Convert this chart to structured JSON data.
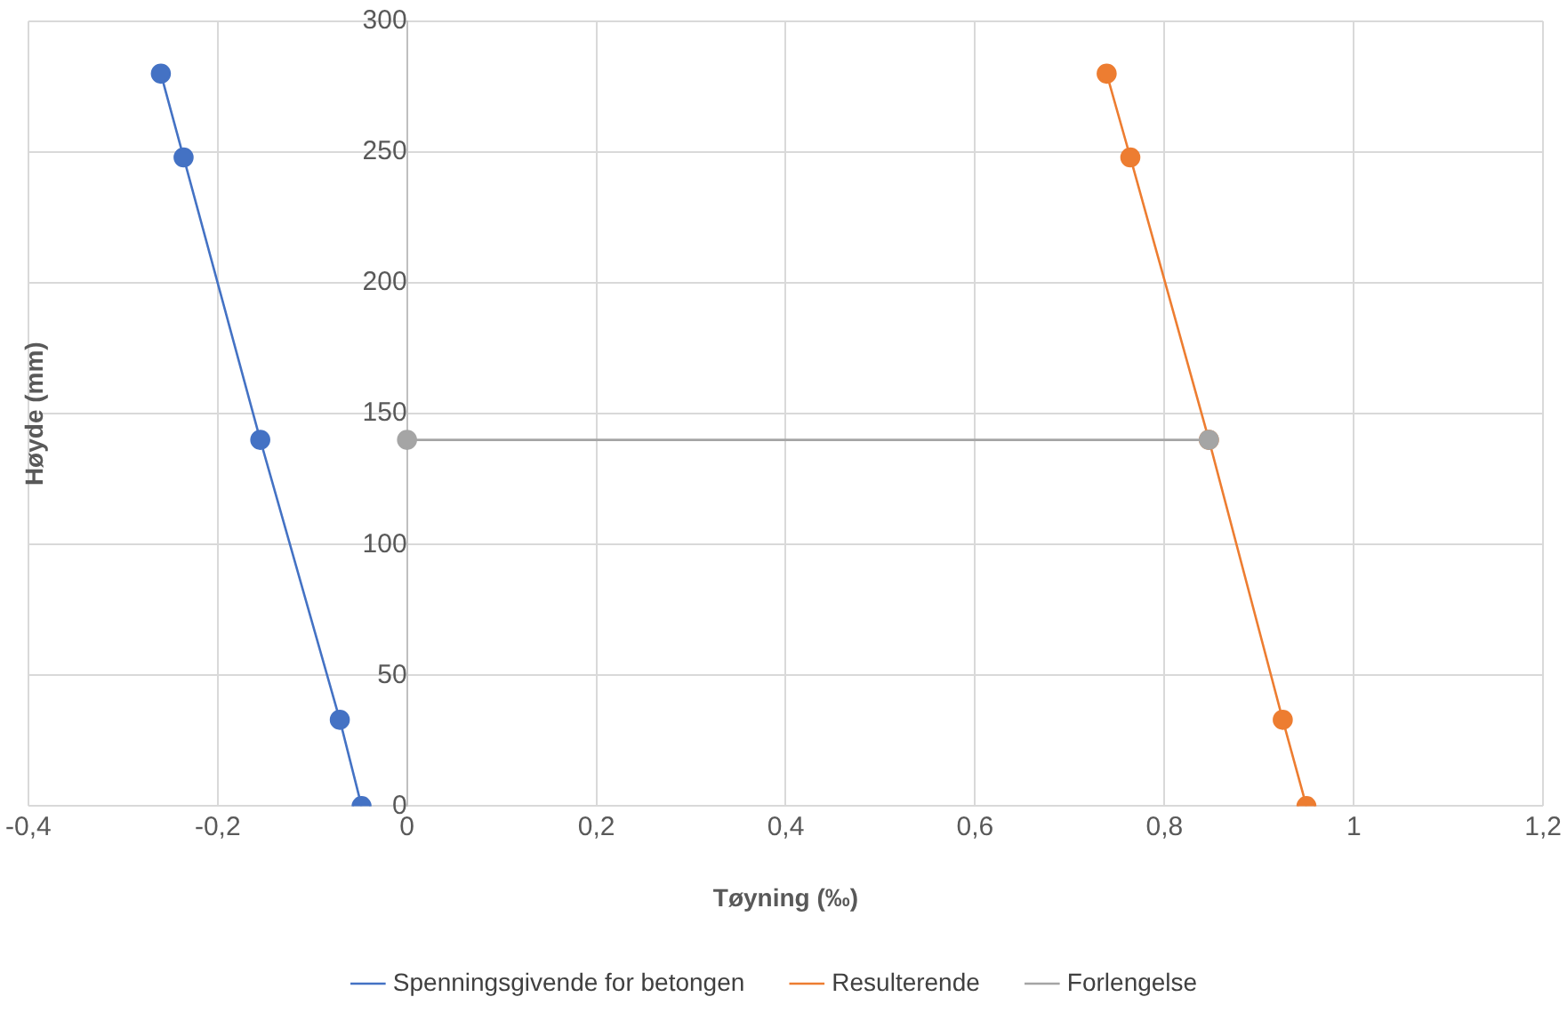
{
  "chart_data": {
    "type": "line",
    "xlabel": "Tøyning (‰)",
    "ylabel": "Høyde (mm)",
    "xlim": [
      -0.4,
      1.2
    ],
    "xticks": [
      {
        "value": -0.4,
        "label": "-0,4"
      },
      {
        "value": -0.2,
        "label": "-0,2"
      },
      0,
      {
        "value": 0.2,
        "label": "0,2"
      },
      {
        "value": 0.4,
        "label": "0,4"
      },
      {
        "value": 0.6,
        "label": "0,6"
      },
      {
        "value": 0.8,
        "label": "0,8"
      },
      1,
      {
        "value": 1.2,
        "label": "1,2"
      }
    ],
    "ylim": [
      0,
      300
    ],
    "yticks": [
      0,
      50,
      100,
      150,
      200,
      250,
      300
    ],
    "grid": true,
    "legend": "bottom",
    "marker": "circle",
    "line_style": "solid",
    "series": [
      {
        "name": "Spenningsgivende for betongen",
        "color": "#4472c4",
        "x": [
          -0.26,
          -0.236,
          -0.155,
          -0.071,
          -0.048
        ],
        "values": [
          280,
          248,
          140,
          33,
          0
        ]
      },
      {
        "name": "Resulterende",
        "color": "#ed7d31",
        "x": [
          0.739,
          0.764,
          0.847,
          0.925,
          0.95
        ],
        "values": [
          280,
          248,
          140,
          33,
          0
        ]
      },
      {
        "name": "Forlengelse",
        "color": "#a5a5a5",
        "x": [
          0,
          0.847
        ],
        "values": [
          140,
          140
        ]
      }
    ]
  }
}
